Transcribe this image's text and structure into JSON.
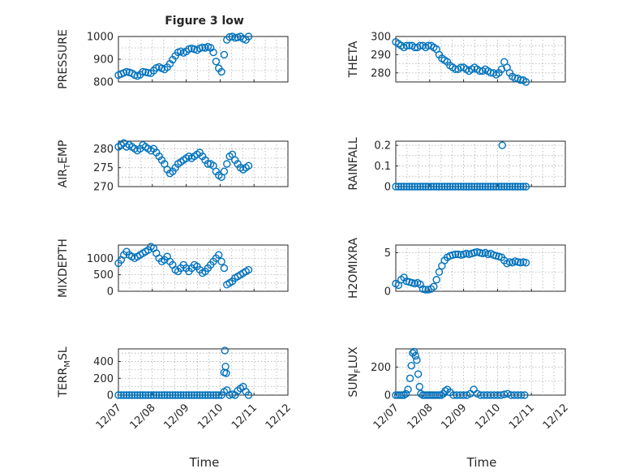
{
  "figure": {
    "title": "Figure 3 low",
    "xlabel": "Time",
    "xtick_labels": [
      "12/07",
      "12/08",
      "12/09",
      "12/10",
      "12/11",
      "12/12"
    ],
    "marker_color": "#0072BD",
    "marker": "circle"
  },
  "chart_data": [
    {
      "type": "scatter",
      "ylabel": "PRESSURE",
      "ylim": [
        800,
        1000
      ],
      "yticks": [
        800,
        900,
        1000
      ],
      "xlim": [
        0,
        5
      ],
      "grid": true,
      "x": [
        0.0,
        0.08,
        0.16,
        0.24,
        0.32,
        0.4,
        0.48,
        0.56,
        0.64,
        0.72,
        0.8,
        0.88,
        0.96,
        1.04,
        1.12,
        1.2,
        1.28,
        1.36,
        1.44,
        1.52,
        1.6,
        1.68,
        1.76,
        1.84,
        1.92,
        2.0,
        2.08,
        2.16,
        2.24,
        2.32,
        2.4,
        2.48,
        2.56,
        2.64,
        2.72,
        2.8,
        2.88,
        2.96,
        3.04,
        3.12,
        3.2,
        3.28,
        3.36,
        3.44,
        3.52,
        3.6,
        3.68,
        3.76,
        3.84
      ],
      "y": [
        830,
        835,
        840,
        845,
        842,
        838,
        830,
        826,
        832,
        845,
        843,
        840,
        838,
        850,
        862,
        866,
        860,
        855,
        865,
        880,
        898,
        915,
        930,
        935,
        928,
        934,
        945,
        948,
        944,
        940,
        948,
        952,
        950,
        955,
        950,
        930,
        890,
        860,
        845,
        920,
        985,
        998,
        1000,
        994,
        996,
        1000,
        990,
        985,
        1000
      ]
    },
    {
      "type": "scatter",
      "ylabel": "THETA",
      "ylim": [
        275,
        300
      ],
      "yticks": [
        280,
        290,
        300
      ],
      "xlim": [
        0,
        5
      ],
      "grid": true,
      "x": [
        0.0,
        0.08,
        0.16,
        0.24,
        0.32,
        0.4,
        0.48,
        0.56,
        0.64,
        0.72,
        0.8,
        0.88,
        0.96,
        1.04,
        1.12,
        1.2,
        1.28,
        1.36,
        1.44,
        1.52,
        1.6,
        1.68,
        1.76,
        1.84,
        1.92,
        2.0,
        2.08,
        2.16,
        2.24,
        2.32,
        2.4,
        2.48,
        2.56,
        2.64,
        2.72,
        2.8,
        2.88,
        2.96,
        3.04,
        3.12,
        3.2,
        3.28,
        3.36,
        3.44,
        3.52,
        3.6,
        3.68,
        3.76,
        3.84
      ],
      "y": [
        297,
        296,
        295,
        294,
        295,
        295,
        295,
        294,
        294,
        295,
        295,
        294,
        295,
        295,
        294,
        293,
        290,
        288,
        287,
        286,
        284,
        283,
        282,
        282,
        283,
        283,
        282,
        281,
        282,
        283,
        282,
        281,
        281,
        282,
        281,
        280,
        280,
        279,
        280,
        282,
        286,
        283,
        280,
        278,
        277,
        277,
        276,
        276,
        275
      ]
    },
    {
      "type": "scatter",
      "ylabel": "AIR_TEMP",
      "ylim": [
        270,
        282
      ],
      "yticks": [
        270,
        275,
        280
      ],
      "xlim": [
        0,
        5
      ],
      "grid": true,
      "x": [
        0.0,
        0.08,
        0.16,
        0.24,
        0.32,
        0.4,
        0.48,
        0.56,
        0.64,
        0.72,
        0.8,
        0.88,
        0.96,
        1.04,
        1.12,
        1.2,
        1.28,
        1.36,
        1.44,
        1.52,
        1.6,
        1.68,
        1.76,
        1.84,
        1.92,
        2.0,
        2.08,
        2.16,
        2.24,
        2.32,
        2.4,
        2.48,
        2.56,
        2.64,
        2.72,
        2.8,
        2.88,
        2.96,
        3.04,
        3.12,
        3.2,
        3.28,
        3.36,
        3.44,
        3.52,
        3.6,
        3.68,
        3.76,
        3.84
      ],
      "y": [
        280.5,
        281,
        281.5,
        280.5,
        281,
        280.5,
        280,
        279.5,
        280,
        281,
        280.5,
        280,
        279.5,
        280,
        279,
        278,
        277,
        276,
        274.5,
        273.5,
        274,
        275,
        276,
        276.5,
        277,
        277.5,
        278,
        277.5,
        278,
        278.5,
        279,
        278,
        277,
        276,
        276,
        275.5,
        274,
        273,
        272.5,
        274,
        276,
        278,
        278.5,
        277,
        276,
        275,
        274.5,
        275,
        275.5
      ]
    },
    {
      "type": "scatter",
      "ylabel": "RAINFALL",
      "ylim": [
        0,
        0.22
      ],
      "yticks": [
        0,
        0.1,
        0.2
      ],
      "xlim": [
        0,
        5
      ],
      "grid": true,
      "x": [
        0.0,
        0.08,
        0.16,
        0.24,
        0.32,
        0.4,
        0.48,
        0.56,
        0.64,
        0.72,
        0.8,
        0.88,
        0.96,
        1.04,
        1.12,
        1.2,
        1.28,
        1.36,
        1.44,
        1.52,
        1.6,
        1.68,
        1.76,
        1.84,
        1.92,
        2.0,
        2.08,
        2.16,
        2.24,
        2.32,
        2.4,
        2.48,
        2.56,
        2.64,
        2.72,
        2.8,
        2.88,
        2.96,
        3.04,
        3.12,
        3.2,
        3.28,
        3.36,
        3.44,
        3.52,
        3.6,
        3.68,
        3.76,
        3.84,
        3.14
      ],
      "y": [
        0,
        0,
        0,
        0,
        0,
        0,
        0,
        0,
        0,
        0,
        0,
        0,
        0,
        0,
        0,
        0,
        0,
        0,
        0,
        0,
        0,
        0,
        0,
        0,
        0,
        0,
        0,
        0,
        0,
        0,
        0,
        0,
        0,
        0,
        0,
        0,
        0,
        0,
        0,
        0,
        0,
        0,
        0,
        0,
        0,
        0,
        0,
        0,
        0,
        0.2
      ]
    },
    {
      "type": "scatter",
      "ylabel": "MIXDEPTH",
      "ylim": [
        0,
        1400
      ],
      "yticks": [
        0,
        500,
        1000
      ],
      "xlim": [
        0,
        5
      ],
      "grid": true,
      "x": [
        0.0,
        0.08,
        0.16,
        0.24,
        0.32,
        0.4,
        0.48,
        0.56,
        0.64,
        0.72,
        0.8,
        0.88,
        0.96,
        1.04,
        1.12,
        1.2,
        1.28,
        1.36,
        1.44,
        1.52,
        1.6,
        1.68,
        1.76,
        1.84,
        1.92,
        2.0,
        2.08,
        2.16,
        2.24,
        2.32,
        2.4,
        2.48,
        2.56,
        2.64,
        2.72,
        2.8,
        2.88,
        2.96,
        3.04,
        3.12,
        3.2,
        3.28,
        3.36,
        3.44,
        3.52,
        3.6,
        3.68,
        3.76,
        3.84
      ],
      "y": [
        850,
        950,
        1100,
        1200,
        1100,
        1050,
        1000,
        1050,
        1100,
        1150,
        1200,
        1250,
        1350,
        1300,
        1150,
        1000,
        900,
        950,
        1050,
        900,
        800,
        650,
        600,
        700,
        800,
        700,
        600,
        700,
        800,
        750,
        650,
        550,
        600,
        700,
        800,
        900,
        1000,
        1100,
        900,
        700,
        200,
        250,
        300,
        400,
        450,
        500,
        550,
        600,
        650
      ]
    },
    {
      "type": "scatter",
      "ylabel": "H2OMIXRA",
      "ylim": [
        0,
        6
      ],
      "yticks": [
        0,
        5
      ],
      "xlim": [
        0,
        5
      ],
      "grid": true,
      "x": [
        0.0,
        0.08,
        0.16,
        0.24,
        0.32,
        0.4,
        0.48,
        0.56,
        0.64,
        0.72,
        0.8,
        0.88,
        0.96,
        1.04,
        1.12,
        1.2,
        1.28,
        1.36,
        1.44,
        1.52,
        1.6,
        1.68,
        1.76,
        1.84,
        1.92,
        2.0,
        2.08,
        2.16,
        2.24,
        2.32,
        2.4,
        2.48,
        2.56,
        2.64,
        2.72,
        2.8,
        2.88,
        2.96,
        3.04,
        3.12,
        3.2,
        3.28,
        3.36,
        3.44,
        3.52,
        3.6,
        3.68,
        3.76,
        3.84
      ],
      "y": [
        1.0,
        0.8,
        1.5,
        1.8,
        1.3,
        1.2,
        1.1,
        1.0,
        1.1,
        0.9,
        0.3,
        0.2,
        0.2,
        0.3,
        0.6,
        1.5,
        2.5,
        3.3,
        4.0,
        4.4,
        4.6,
        4.7,
        4.8,
        4.8,
        4.7,
        4.8,
        4.9,
        4.8,
        4.9,
        5.0,
        5.1,
        5.0,
        4.9,
        5.0,
        4.8,
        4.9,
        4.7,
        4.6,
        4.5,
        4.4,
        4.0,
        3.6,
        3.8,
        3.7,
        3.9,
        3.8,
        3.7,
        3.8,
        3.7
      ]
    },
    {
      "type": "scatter",
      "ylabel": "TERR_MSL",
      "ylim": [
        0,
        550
      ],
      "yticks": [
        0,
        200,
        400
      ],
      "xlim": [
        0,
        5
      ],
      "grid": true,
      "x": [
        0.0,
        0.08,
        0.16,
        0.24,
        0.32,
        0.4,
        0.48,
        0.56,
        0.64,
        0.72,
        0.8,
        0.88,
        0.96,
        1.04,
        1.12,
        1.2,
        1.28,
        1.36,
        1.44,
        1.52,
        1.6,
        1.68,
        1.76,
        1.84,
        1.92,
        2.0,
        2.08,
        2.16,
        2.24,
        2.32,
        2.4,
        2.48,
        2.56,
        2.64,
        2.72,
        2.8,
        2.88,
        2.96,
        3.04,
        3.12,
        3.2,
        3.28,
        3.36,
        3.44,
        3.52,
        3.6,
        3.68,
        3.76,
        3.84,
        3.12,
        3.14,
        3.16,
        3.18
      ],
      "y": [
        0,
        0,
        0,
        0,
        0,
        0,
        0,
        0,
        0,
        0,
        0,
        0,
        0,
        0,
        0,
        0,
        0,
        0,
        0,
        0,
        0,
        0,
        0,
        0,
        0,
        0,
        0,
        0,
        0,
        0,
        0,
        0,
        0,
        0,
        0,
        0,
        0,
        0,
        0,
        40,
        60,
        0,
        10,
        0,
        50,
        80,
        100,
        40,
        0,
        270,
        530,
        340,
        260
      ]
    },
    {
      "type": "scatter",
      "ylabel": "SUN_FLUX",
      "ylim": [
        0,
        330
      ],
      "yticks": [
        0,
        200
      ],
      "xlim": [
        0,
        5
      ],
      "grid": true,
      "x": [
        0.0,
        0.06,
        0.12,
        0.18,
        0.24,
        0.3,
        0.36,
        0.42,
        0.46,
        0.5,
        0.54,
        0.58,
        0.62,
        0.66,
        0.7,
        0.74,
        0.8,
        0.86,
        0.92,
        0.98,
        1.04,
        1.1,
        1.16,
        1.22,
        1.28,
        1.34,
        1.4,
        1.46,
        1.52,
        1.6,
        1.7,
        1.8,
        1.9,
        2.0,
        2.1,
        2.2,
        2.3,
        2.4,
        2.5,
        2.6,
        2.7,
        2.8,
        2.9,
        3.0,
        3.1,
        3.2,
        3.3,
        3.4,
        3.5,
        3.6,
        3.7,
        3.8
      ],
      "y": [
        0,
        0,
        0,
        0,
        0,
        10,
        40,
        120,
        210,
        300,
        310,
        280,
        250,
        150,
        60,
        10,
        0,
        0,
        0,
        0,
        0,
        0,
        0,
        0,
        0,
        0,
        10,
        30,
        40,
        20,
        0,
        0,
        0,
        0,
        0,
        10,
        40,
        10,
        0,
        0,
        0,
        0,
        0,
        0,
        0,
        5,
        10,
        0,
        0,
        0,
        0,
        0
      ]
    }
  ]
}
